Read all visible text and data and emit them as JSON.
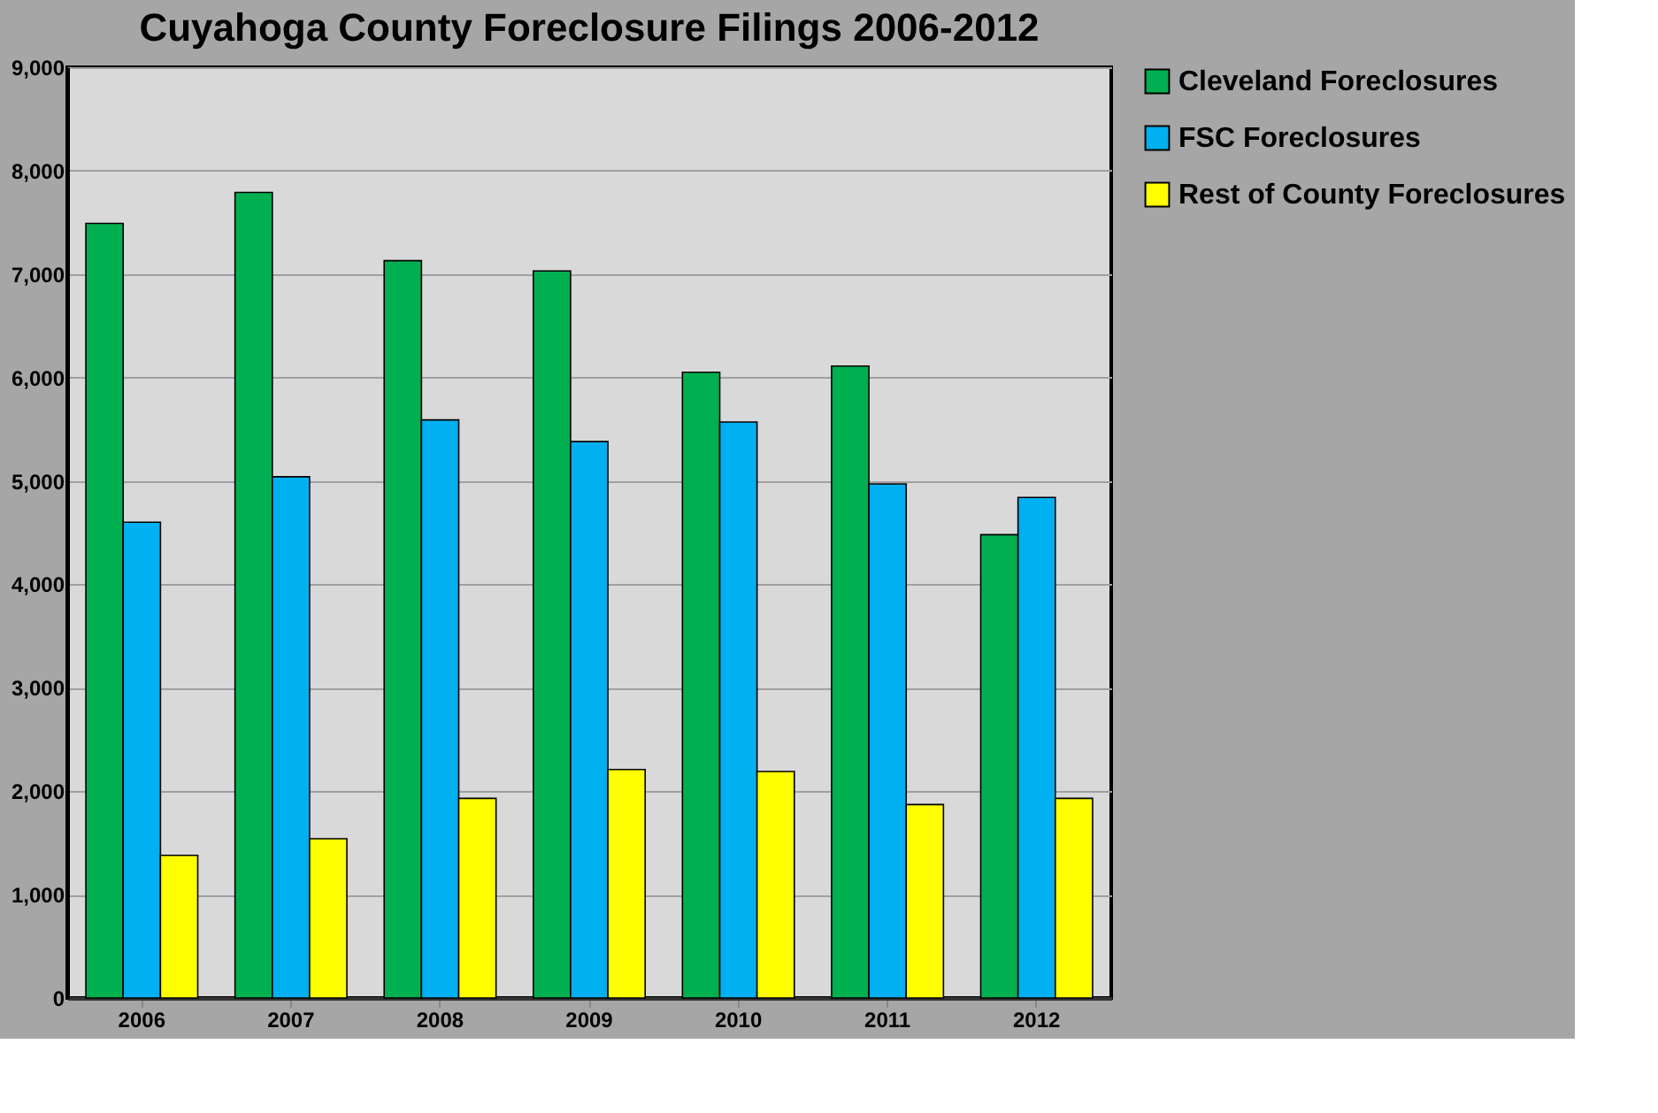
{
  "chart_data": {
    "type": "bar",
    "title": "Cuyahoga County Foreclosure Filings 2006-2012",
    "categories": [
      "2006",
      "2007",
      "2008",
      "2009",
      "2010",
      "2011",
      "2012"
    ],
    "series": [
      {
        "name": "Cleveland Foreclosures",
        "color": "#00b050",
        "values": [
          7490,
          7790,
          7130,
          7030,
          6050,
          6110,
          4480
        ]
      },
      {
        "name": "FSC Foreclosures",
        "color": "#00b0f0",
        "values": [
          4600,
          5040,
          5590,
          5380,
          5570,
          4970,
          4840
        ]
      },
      {
        "name": "Rest of County Foreclosures",
        "color": "#ffff00",
        "values": [
          1380,
          1540,
          1930,
          2210,
          2190,
          1870,
          1930
        ]
      }
    ],
    "ylim": [
      0,
      9000
    ],
    "yticks": [
      0,
      {
        "value": 1000,
        "label": "1,000"
      },
      {
        "value": 2000,
        "label": "2,000"
      },
      {
        "value": 3000,
        "label": "3,000"
      },
      {
        "value": 4000,
        "label": "4,000"
      },
      {
        "value": 5000,
        "label": "5,000"
      },
      {
        "value": 6000,
        "label": "6,000"
      },
      {
        "value": 7000,
        "label": "7,000"
      },
      {
        "value": 8000,
        "label": "8,000"
      },
      {
        "value": 9000,
        "label": "9,000"
      }
    ],
    "grid": "y",
    "legend": "right"
  }
}
